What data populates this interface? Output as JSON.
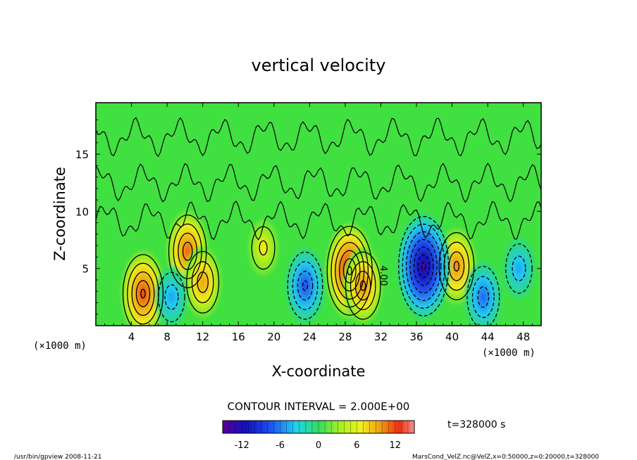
{
  "chart_data": {
    "type": "heatmap",
    "title": "vertical velocity",
    "xlabel": "X-coordinate",
    "ylabel": "Z-coordinate",
    "x_unit_left": "(×1000 m)",
    "x_unit_right": "(×1000 m)",
    "xlim": [
      0,
      50
    ],
    "ylim": [
      0,
      19.5
    ],
    "x_ticks": [
      4,
      8,
      12,
      16,
      20,
      24,
      28,
      32,
      36,
      40,
      44,
      48
    ],
    "y_ticks": [
      5,
      10,
      15
    ],
    "contour_interval_text": "CONTOUR INTERVAL = 2.000E+00",
    "contour_label": "4.00",
    "time_label": "t=328000 s",
    "colorbar": {
      "range": [
        -15,
        15
      ],
      "ticks": [
        -12,
        -6,
        0,
        6,
        12
      ]
    },
    "features": [
      {
        "x": 5.3,
        "z": 2.8,
        "w": 10
      },
      {
        "x": 10.3,
        "z": 6.5,
        "w": 9
      },
      {
        "x": 12.0,
        "z": 3.8,
        "w": 7
      },
      {
        "x": 28.5,
        "z": 4.8,
        "w": 12
      },
      {
        "x": 30.0,
        "z": 3.5,
        "w": 8
      },
      {
        "x": 40.5,
        "z": 5.2,
        "w": 8
      },
      {
        "x": 18.8,
        "z": 6.8,
        "w": 4
      },
      {
        "x": 23.5,
        "z": 3.5,
        "w": -8
      },
      {
        "x": 36.8,
        "z": 5.2,
        "w": -14
      },
      {
        "x": 43.5,
        "z": 2.5,
        "w": -7
      },
      {
        "x": 47.5,
        "z": 5.0,
        "w": -5
      },
      {
        "x": 8.5,
        "z": 2.5,
        "w": -5
      }
    ],
    "grid": false
  },
  "footer": {
    "left": "/usr/bin/gpview   2008-11-21",
    "right": "MarsCond_VelZ.nc@VelZ,x=0:50000,z=0:20000,t=328000"
  }
}
